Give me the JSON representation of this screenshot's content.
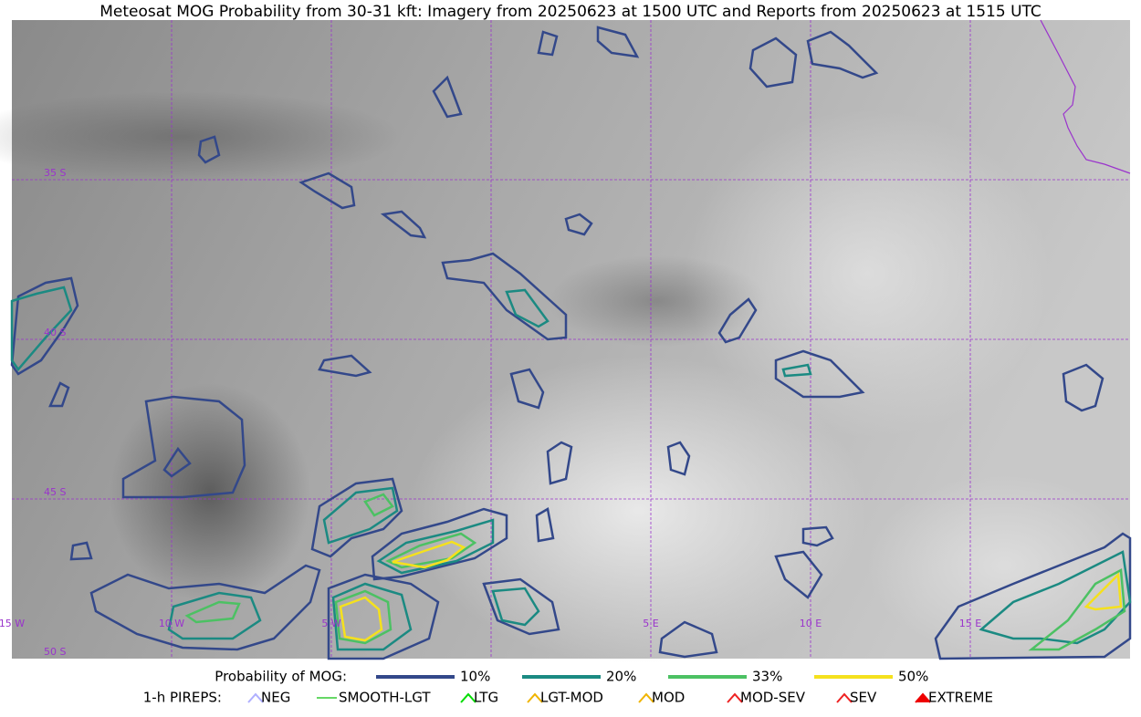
{
  "title": "Meteosat MOG Probability from 30-31 kft: Imagery from 20250623 at 1500 UTC and Reports from 20250623 at 1515 UTC",
  "map": {
    "lat_labels": [
      "35 S",
      "40 S",
      "45 S",
      "50 S"
    ],
    "lon_labels": [
      "15 W",
      "10 W",
      "5 W",
      "5 E",
      "10 E",
      "15 E"
    ]
  },
  "legend": {
    "probability_title": "Probability of MOG:",
    "probability": [
      {
        "label": "10%",
        "color": "#33488a"
      },
      {
        "label": "20%",
        "color": "#1b8a82"
      },
      {
        "label": "33%",
        "color": "#4cc163"
      },
      {
        "label": "50%",
        "color": "#f5e11d"
      }
    ],
    "pireps_title": "1-h PIREPS:",
    "pireps": [
      {
        "label": "NEG",
        "color": "#b0b0ff"
      },
      {
        "label": "SMOOTH-LGT",
        "color": "#33cc33"
      },
      {
        "label": "LTG",
        "color": "#00dd00"
      },
      {
        "label": "LGT-MOD",
        "color": "#f0b400"
      },
      {
        "label": "MOD",
        "color": "#f0b400"
      },
      {
        "label": "MOD-SEV",
        "color": "#ee2222"
      },
      {
        "label": "SEV",
        "color": "#ee2222"
      },
      {
        "label": "EXTREME",
        "color": "#ee0000"
      }
    ]
  }
}
